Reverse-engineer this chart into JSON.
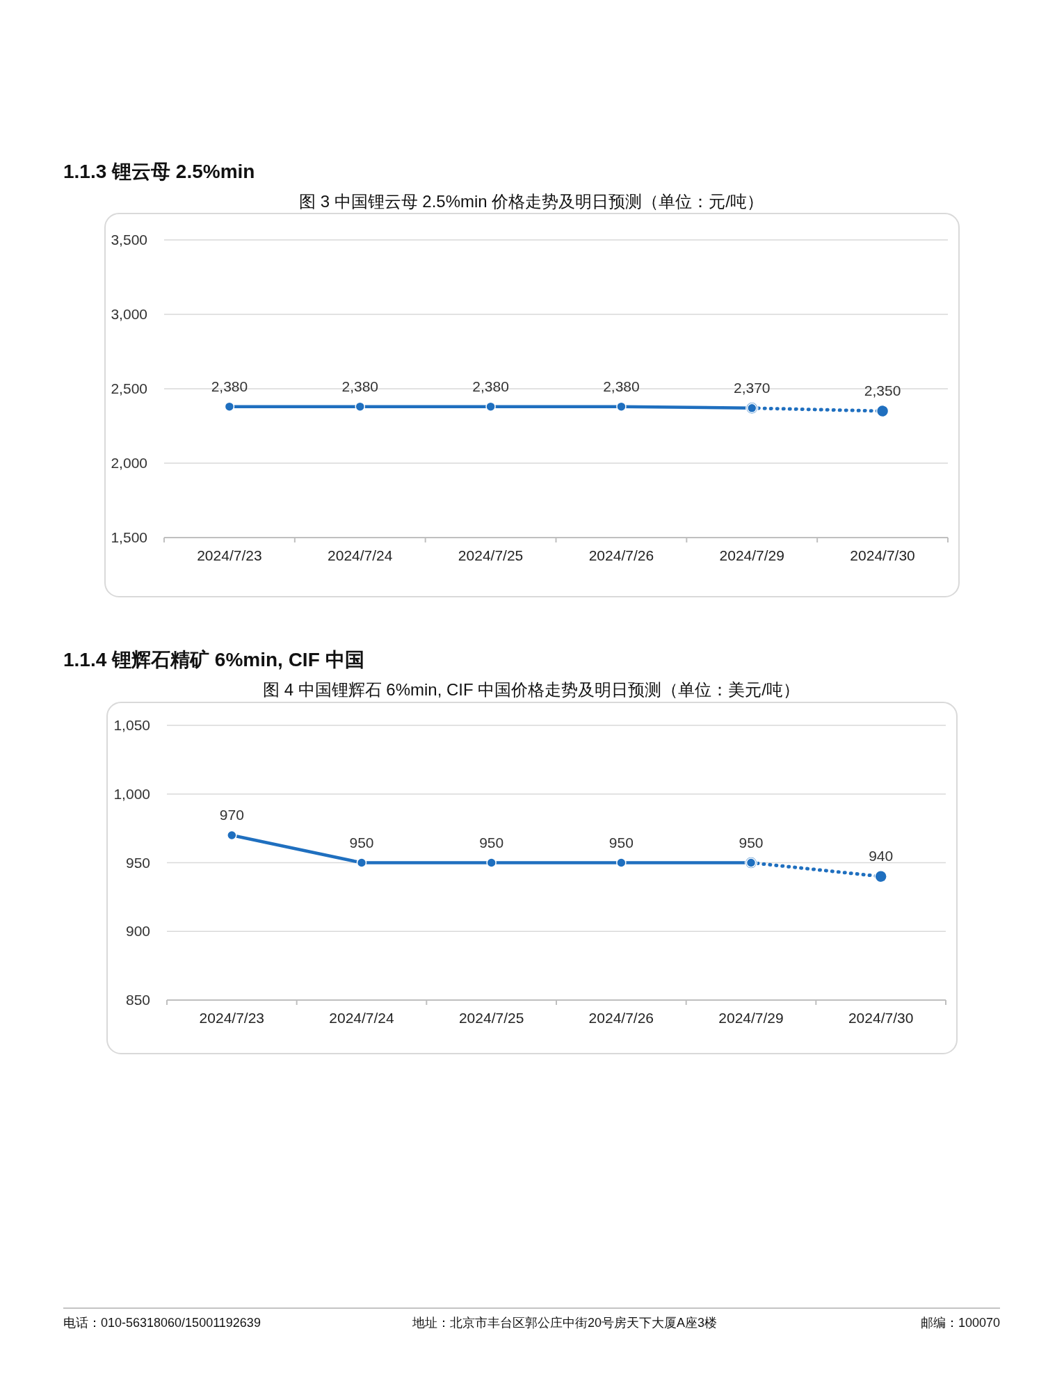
{
  "chart_data": [
    {
      "type": "line",
      "title": "图 3 中国锂云母 2.5%min 价格走势及明日预测（单位：元/吨）",
      "categories": [
        "2024/7/23",
        "2024/7/24",
        "2024/7/25",
        "2024/7/26",
        "2024/7/29",
        "2024/7/30"
      ],
      "series": [
        {
          "color": "#1f6fbf",
          "line_style": "solid",
          "values": [
            2380,
            2380,
            2380,
            2380,
            2370,
            null
          ],
          "value_labels": [
            "2,380",
            "2,380",
            "2,380",
            "2,380",
            "2,370",
            null
          ]
        },
        {
          "color": "#1f6fbf",
          "line_style": "dotted",
          "values": [
            null,
            null,
            null,
            null,
            2370,
            2350
          ],
          "value_labels": [
            null,
            null,
            null,
            null,
            null,
            "2,350"
          ]
        }
      ],
      "ylim": [
        1500,
        3500
      ],
      "yticks": [
        {
          "value": 1500,
          "label": "1,500"
        },
        {
          "value": 2000,
          "label": "2,000"
        },
        {
          "value": 2500,
          "label": "2,500"
        },
        {
          "value": 3000,
          "label": "3,000"
        },
        {
          "value": 3500,
          "label": "3,500"
        }
      ],
      "grid": "y",
      "marker": "circle",
      "annotations": [
        "1.1.3 锂云母 2.5%min"
      ]
    },
    {
      "type": "line",
      "title": "图 4 中国锂辉石 6%min, CIF 中国价格走势及明日预测（单位：美元/吨）",
      "categories": [
        "2024/7/23",
        "2024/7/24",
        "2024/7/25",
        "2024/7/26",
        "2024/7/29",
        "2024/7/30"
      ],
      "series": [
        {
          "color": "#1f6fbf",
          "line_style": "solid",
          "values": [
            970,
            950,
            950,
            950,
            950,
            null
          ],
          "value_labels": [
            "970",
            "950",
            "950",
            "950",
            "950",
            null
          ]
        },
        {
          "color": "#1f6fbf",
          "line_style": "dotted",
          "values": [
            null,
            null,
            null,
            null,
            950,
            940
          ],
          "value_labels": [
            null,
            null,
            null,
            null,
            null,
            "940"
          ]
        }
      ],
      "ylim": [
        850,
        1050
      ],
      "yticks": [
        {
          "value": 850,
          "label": "850"
        },
        {
          "value": 900,
          "label": "900"
        },
        {
          "value": 950,
          "label": "950"
        },
        {
          "value": 1000,
          "label": "1,000"
        },
        {
          "value": 1050,
          "label": "1,050"
        }
      ],
      "grid": "y",
      "marker": "circle",
      "annotations": [
        "1.1.4 锂辉石精矿 6%min, CIF 中国",
        "电话：010-56318060/15001192639",
        "地址：北京市丰台区郭公庄中街20号房天下大厦A座3楼",
        "邮编：100070"
      ]
    }
  ]
}
